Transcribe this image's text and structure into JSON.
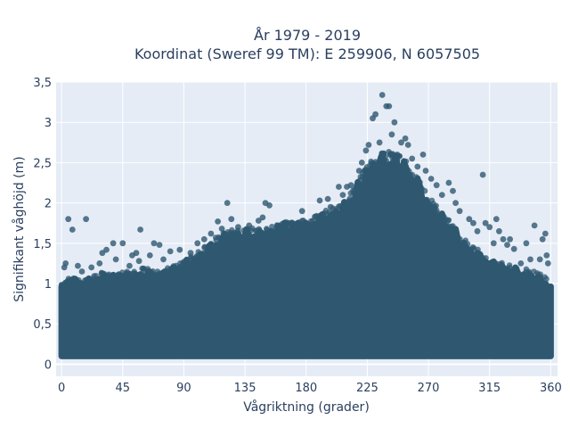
{
  "chart_data": {
    "type": "scatter",
    "title_line1": "År 1979 - 2019",
    "title_line2": "Koordinat (Sweref 99 TM): E 259906, N 6057505",
    "xlabel": "Vågriktning (grader)",
    "ylabel": "Signifikant våghöjd (m)",
    "xlim": [
      -4,
      365
    ],
    "ylim": [
      -0.15,
      3.5
    ],
    "x_ticks": [
      0,
      45,
      90,
      135,
      180,
      225,
      270,
      315,
      360
    ],
    "x_tick_labels": [
      "0",
      "45",
      "90",
      "135",
      "180",
      "225",
      "270",
      "315",
      "360"
    ],
    "y_ticks": [
      0,
      0.5,
      1,
      1.5,
      2,
      2.5,
      3,
      3.5
    ],
    "y_tick_labels": [
      "0",
      "0,5",
      "1",
      "1,5",
      "2",
      "2,5",
      "3",
      "3,5"
    ],
    "grid": true,
    "background_color": "#e5ecf6",
    "marker_color": "#2f5870",
    "envelope": {
      "x": [
        0,
        10,
        20,
        30,
        45,
        60,
        75,
        90,
        100,
        110,
        120,
        130,
        140,
        150,
        160,
        170,
        180,
        190,
        200,
        210,
        220,
        230,
        240,
        250,
        260,
        270,
        280,
        290,
        300,
        310,
        320,
        330,
        340,
        350,
        360
      ],
      "y_max": [
        1.0,
        1.05,
        1.05,
        1.1,
        1.1,
        1.15,
        1.15,
        1.25,
        1.35,
        1.5,
        1.6,
        1.65,
        1.65,
        1.65,
        1.7,
        1.75,
        1.75,
        1.85,
        1.9,
        2.0,
        2.3,
        2.55,
        2.6,
        2.55,
        2.35,
        2.05,
        1.85,
        1.65,
        1.45,
        1.35,
        1.25,
        1.2,
        1.15,
        1.1,
        1.0
      ],
      "y_min": 0.1
    },
    "outliers": [
      [
        2,
        1.2
      ],
      [
        3,
        1.25
      ],
      [
        5,
        1.8
      ],
      [
        8,
        1.67
      ],
      [
        12,
        1.22
      ],
      [
        15,
        1.15
      ],
      [
        18,
        1.8
      ],
      [
        22,
        1.2
      ],
      [
        28,
        1.25
      ],
      [
        30,
        1.38
      ],
      [
        33,
        1.42
      ],
      [
        38,
        1.5
      ],
      [
        40,
        1.3
      ],
      [
        45,
        1.5
      ],
      [
        50,
        1.22
      ],
      [
        52,
        1.35
      ],
      [
        55,
        1.38
      ],
      [
        57,
        1.28
      ],
      [
        58,
        1.67
      ],
      [
        65,
        1.35
      ],
      [
        68,
        1.5
      ],
      [
        72,
        1.48
      ],
      [
        75,
        1.3
      ],
      [
        80,
        1.4
      ],
      [
        87,
        1.42
      ],
      [
        95,
        1.38
      ],
      [
        100,
        1.5
      ],
      [
        105,
        1.55
      ],
      [
        110,
        1.62
      ],
      [
        115,
        1.77
      ],
      [
        118,
        1.68
      ],
      [
        122,
        2.0
      ],
      [
        125,
        1.8
      ],
      [
        130,
        1.7
      ],
      [
        138,
        1.72
      ],
      [
        145,
        1.78
      ],
      [
        148,
        1.82
      ],
      [
        150,
        2.0
      ],
      [
        153,
        1.97
      ],
      [
        165,
        1.72
      ],
      [
        170,
        1.75
      ],
      [
        177,
        1.9
      ],
      [
        185,
        1.78
      ],
      [
        190,
        2.03
      ],
      [
        196,
        2.05
      ],
      [
        198,
        1.95
      ],
      [
        204,
        2.2
      ],
      [
        207,
        2.1
      ],
      [
        210,
        2.2
      ],
      [
        213,
        2.22
      ],
      [
        215,
        2.12
      ],
      [
        219,
        2.4
      ],
      [
        221,
        2.5
      ],
      [
        224,
        2.65
      ],
      [
        226,
        2.72
      ],
      [
        229,
        3.05
      ],
      [
        231,
        3.1
      ],
      [
        234,
        2.75
      ],
      [
        236,
        3.34
      ],
      [
        239,
        3.2
      ],
      [
        241,
        3.2
      ],
      [
        243,
        2.85
      ],
      [
        245,
        3.0
      ],
      [
        247,
        2.6
      ],
      [
        250,
        2.75
      ],
      [
        253,
        2.8
      ],
      [
        255,
        2.72
      ],
      [
        258,
        2.55
      ],
      [
        262,
        2.45
      ],
      [
        266,
        2.6
      ],
      [
        268,
        2.4
      ],
      [
        272,
        2.3
      ],
      [
        276,
        2.22
      ],
      [
        280,
        2.1
      ],
      [
        285,
        2.25
      ],
      [
        288,
        2.15
      ],
      [
        290,
        2.0
      ],
      [
        293,
        1.9
      ],
      [
        300,
        1.8
      ],
      [
        303,
        1.75
      ],
      [
        306,
        1.65
      ],
      [
        310,
        2.35
      ],
      [
        312,
        1.75
      ],
      [
        315,
        1.7
      ],
      [
        318,
        1.5
      ],
      [
        320,
        1.8
      ],
      [
        322,
        1.65
      ],
      [
        325,
        1.55
      ],
      [
        328,
        1.48
      ],
      [
        330,
        1.55
      ],
      [
        333,
        1.43
      ],
      [
        338,
        1.25
      ],
      [
        342,
        1.5
      ],
      [
        345,
        1.3
      ],
      [
        348,
        1.72
      ],
      [
        352,
        1.3
      ],
      [
        354,
        1.55
      ],
      [
        356,
        1.62
      ],
      [
        357,
        1.35
      ],
      [
        358,
        1.25
      ]
    ]
  }
}
